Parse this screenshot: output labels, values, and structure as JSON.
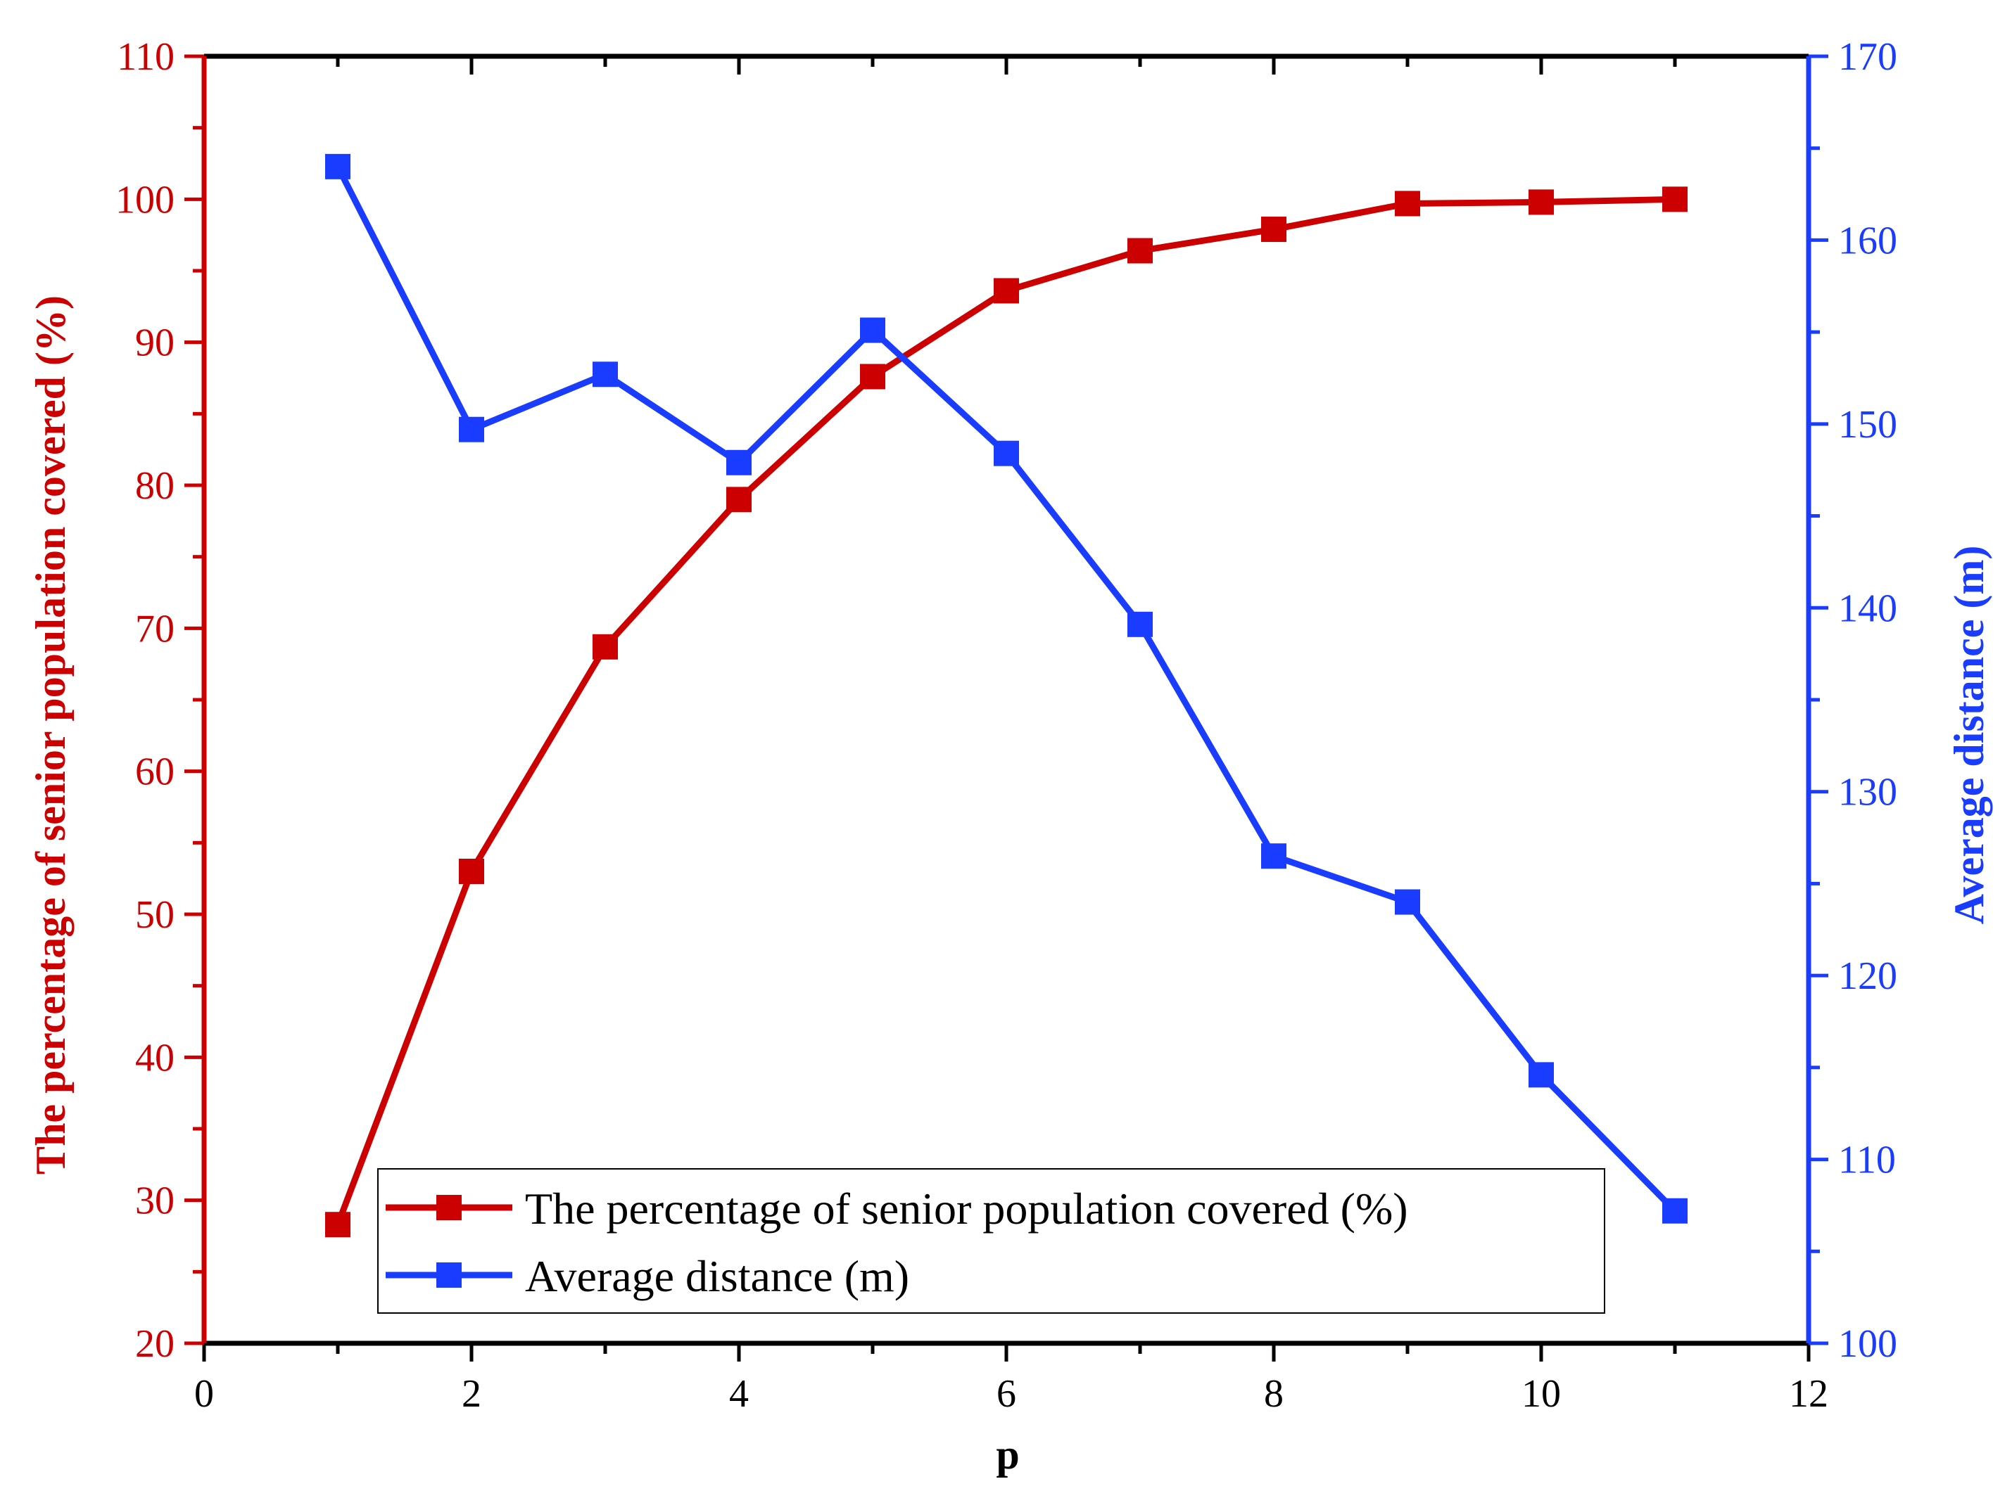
{
  "chart_data": {
    "type": "line",
    "title": "",
    "xlabel": "p",
    "x_ticks": [
      0,
      2,
      4,
      6,
      8,
      10,
      12
    ],
    "xlim": [
      0,
      12
    ],
    "grid": false,
    "legend_position": "bottom-center",
    "axes": {
      "left": {
        "label": "The percentage of senior population covered (%)",
        "ylim": [
          20,
          110
        ],
        "ticks": [
          20,
          30,
          40,
          50,
          60,
          70,
          80,
          90,
          100,
          110
        ],
        "color": "#cc0000"
      },
      "right": {
        "label": "Average distance (m)",
        "ylim": [
          100,
          170
        ],
        "ticks": [
          100,
          110,
          120,
          130,
          140,
          150,
          160,
          170
        ],
        "color": "#1a3cff"
      }
    },
    "series": [
      {
        "name": "The percentage of senior population covered (%)",
        "axis": "left",
        "color": "#cc0000",
        "marker": "square",
        "x": [
          1,
          2,
          3,
          4,
          5,
          6,
          7,
          8,
          9,
          10,
          11
        ],
        "values": [
          28.3,
          53.0,
          68.7,
          79.0,
          87.6,
          93.6,
          96.4,
          97.9,
          99.7,
          99.8,
          100.0
        ]
      },
      {
        "name": "Average distance (m)",
        "axis": "right",
        "color": "#1a3cff",
        "marker": "square",
        "x": [
          1,
          2,
          3,
          4,
          5,
          6,
          7,
          8,
          9,
          10,
          11
        ],
        "values": [
          164.0,
          149.7,
          152.7,
          147.9,
          155.1,
          148.4,
          139.1,
          126.5,
          124.0,
          114.6,
          107.2
        ]
      }
    ]
  }
}
